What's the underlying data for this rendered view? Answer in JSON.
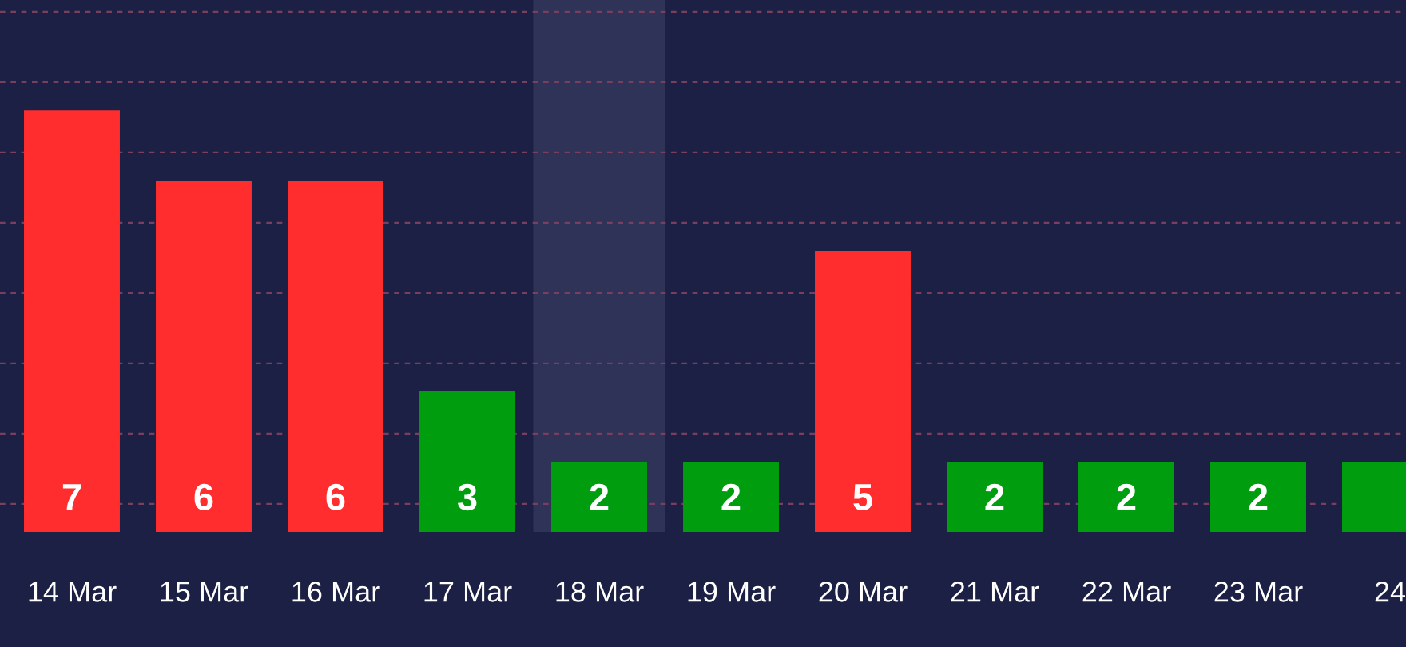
{
  "chart_data": {
    "type": "bar",
    "categories": [
      "14 Mar",
      "15 Mar",
      "16 Mar",
      "17 Mar",
      "18 Mar",
      "19 Mar",
      "20 Mar",
      "21 Mar",
      "22 Mar",
      "23 Mar",
      "24"
    ],
    "values": [
      7,
      6,
      6,
      3,
      2,
      2,
      5,
      2,
      2,
      2,
      2
    ],
    "colors": [
      "#ff2d2d",
      "#ff2d2d",
      "#ff2d2d",
      "#009e0f",
      "#009e0f",
      "#009e0f",
      "#ff2d2d",
      "#009e0f",
      "#009e0f",
      "#009e0f",
      "#009e0f"
    ],
    "value_labels": [
      "7",
      "6",
      "6",
      "3",
      "2",
      "2",
      "5",
      "2",
      "2",
      "2",
      null
    ],
    "ylim": [
      1,
      8.57
    ],
    "yticks": [
      {
        "value": 1.4,
        "label": null
      },
      {
        "value": 2.4,
        "label": null
      },
      {
        "value": 3.4,
        "label": null
      },
      {
        "value": 4.4,
        "label": null
      },
      {
        "value": 5.4,
        "label": null
      },
      {
        "value": 6.4,
        "label": null
      },
      {
        "value": 7.4,
        "label": null
      },
      {
        "value": 8.4,
        "label": null
      }
    ],
    "grid": "y",
    "tick_labels": "x",
    "bands": [
      {
        "axis": "x",
        "from": "18 Mar",
        "to": "18 Mar",
        "color": "#2e3357"
      }
    ]
  }
}
